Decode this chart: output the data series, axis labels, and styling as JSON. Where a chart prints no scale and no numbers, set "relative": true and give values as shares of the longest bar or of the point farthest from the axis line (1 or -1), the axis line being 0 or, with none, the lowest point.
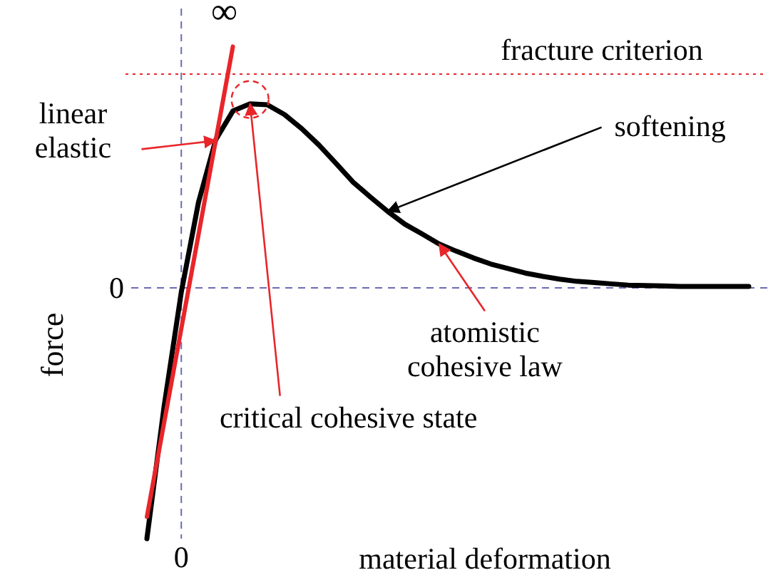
{
  "chart_data": {
    "type": "line",
    "relative": true,
    "xlabel": "material deformation",
    "ylabel": "force",
    "line_style": "solid",
    "categories": [
      null,
      null,
      null,
      null,
      null,
      null,
      null,
      null,
      null,
      null,
      null,
      null,
      null,
      null,
      null,
      null,
      null,
      null,
      null,
      null,
      null,
      null,
      null,
      null,
      null,
      null,
      null,
      null,
      null,
      null,
      null,
      null,
      null,
      null,
      null,
      null
    ],
    "series": [
      {
        "color": "#000000",
        "values": [
          -1.0,
          -0.473,
          -0.017,
          0.341,
          0.59,
          0.705,
          0.734,
          0.73,
          0.691,
          0.635,
          0.57,
          0.496,
          0.421,
          0.362,
          0.305,
          0.254,
          0.215,
          0.175,
          0.146,
          0.119,
          0.095,
          0.077,
          0.059,
          0.046,
          0.035,
          0.026,
          0.021,
          0.016,
          0.011,
          0.009,
          0.008,
          0.006,
          0.006,
          0.006,
          0.006,
          0.006
        ]
      },
      {
        "color": "#e8262a",
        "values": [
          -0.913,
          -0.538,
          -0.163,
          0.212,
          0.587,
          0.962,
          null,
          null,
          null,
          null,
          null,
          null,
          null,
          null,
          null,
          null,
          null,
          null,
          null,
          null,
          null,
          null,
          null,
          null,
          null,
          null,
          null,
          null,
          null,
          null,
          null,
          null,
          null,
          null,
          null,
          null
        ]
      }
    ],
    "ref_lines": [
      {
        "axis": "x",
        "label": "0",
        "color": "#6b6bb5",
        "line_style": "dashed"
      },
      {
        "axis": "y",
        "value": 0,
        "label": "0",
        "color": "#6b6bb5",
        "line_style": "dashed"
      },
      {
        "axis": "y",
        "value": 0.852,
        "label": "fracture criterion",
        "color": "#e8262a",
        "line_style": "dotted"
      }
    ],
    "annotations": [
      "∞",
      "linear elastic",
      "softening",
      "atomistic cohesive law",
      "critical cohesive state"
    ]
  }
}
